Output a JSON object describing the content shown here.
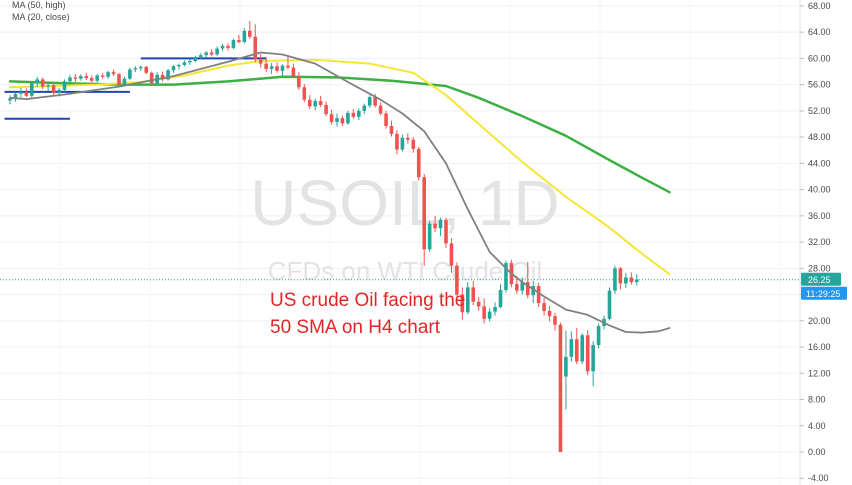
{
  "chart_data": {
    "type": "candlestick",
    "symbol_watermark": "USOIL, 1D",
    "subtitle_watermark": "CFDs on WTI Crude Oil",
    "annotation": [
      "US crude Oil facing the",
      "50 SMA on H4 chart"
    ],
    "legend": [
      {
        "label": "MA (50, high)",
        "color": "#f5e636"
      },
      {
        "label": "MA (20, close)",
        "color": "#808080"
      }
    ],
    "y_axis": {
      "ylim": [
        -2,
        70
      ],
      "ticks": [
        "68.00",
        "64.00",
        "60.00",
        "56.00",
        "52.00",
        "48.00",
        "44.00",
        "40.00",
        "36.00",
        "32.00",
        "28.00",
        "24.00",
        "20.00",
        "16.00",
        "12.00",
        "8.00",
        "4.00",
        "0.00",
        "-4.00"
      ]
    },
    "last_price": {
      "value": 26.25,
      "label": "26.25",
      "color": "#26a69a"
    },
    "countdown": {
      "label": "11:29:25",
      "color": "#2196f3"
    },
    "colors": {
      "up": "#26a69a",
      "down": "#ef5350",
      "ma_fast": "#808080",
      "ma_yellow": "#f5e636",
      "ma_green": "#3cb043",
      "levels": "#1e44b4"
    },
    "candles": [
      [
        53.6,
        54.4,
        53.0,
        53.9
      ],
      [
        53.9,
        54.8,
        53.4,
        54.6
      ],
      [
        54.6,
        55.5,
        54.0,
        54.9
      ],
      [
        54.9,
        55.4,
        54.1,
        54.3
      ],
      [
        54.3,
        56.4,
        54.0,
        56.2
      ],
      [
        56.2,
        57.2,
        55.6,
        56.8
      ],
      [
        56.8,
        57.1,
        55.3,
        55.7
      ],
      [
        55.7,
        56.4,
        55.0,
        55.9
      ],
      [
        55.9,
        56.1,
        54.4,
        54.7
      ],
      [
        54.7,
        55.5,
        54.2,
        55.2
      ],
      [
        55.2,
        56.8,
        54.9,
        56.5
      ],
      [
        56.5,
        57.5,
        56.0,
        57.1
      ],
      [
        57.1,
        57.6,
        56.4,
        56.9
      ],
      [
        56.9,
        57.6,
        56.6,
        57.3
      ],
      [
        57.3,
        57.8,
        56.7,
        57.0
      ],
      [
        57.0,
        57.4,
        56.3,
        56.6
      ],
      [
        56.6,
        57.6,
        56.3,
        57.4
      ],
      [
        57.4,
        57.8,
        56.9,
        57.2
      ],
      [
        57.2,
        58.1,
        56.9,
        57.9
      ],
      [
        57.9,
        58.3,
        57.3,
        57.6
      ],
      [
        57.6,
        57.8,
        55.7,
        56.0
      ],
      [
        56.0,
        57.2,
        55.7,
        56.9
      ],
      [
        56.9,
        58.6,
        56.7,
        58.3
      ],
      [
        58.3,
        58.8,
        57.9,
        58.5
      ],
      [
        58.5,
        58.9,
        58.1,
        58.7
      ],
      [
        58.7,
        58.9,
        57.6,
        57.8
      ],
      [
        57.8,
        58.0,
        55.8,
        56.2
      ],
      [
        56.2,
        57.9,
        55.9,
        57.5
      ],
      [
        57.5,
        58.0,
        56.5,
        56.8
      ],
      [
        56.8,
        58.4,
        56.6,
        58.2
      ],
      [
        58.2,
        59.0,
        57.8,
        58.8
      ],
      [
        58.8,
        59.2,
        58.3,
        59.0
      ],
      [
        59.0,
        59.7,
        58.8,
        59.4
      ],
      [
        59.4,
        59.9,
        59.0,
        59.6
      ],
      [
        59.6,
        60.4,
        59.4,
        60.2
      ],
      [
        60.2,
        60.8,
        59.8,
        60.5
      ],
      [
        60.5,
        61.1,
        60.1,
        60.9
      ],
      [
        60.9,
        61.4,
        60.3,
        60.6
      ],
      [
        60.6,
        61.8,
        60.4,
        61.5
      ],
      [
        61.5,
        62.2,
        61.1,
        61.9
      ],
      [
        61.9,
        62.3,
        61.2,
        61.6
      ],
      [
        61.6,
        63.0,
        61.4,
        62.8
      ],
      [
        62.8,
        63.6,
        62.3,
        62.5
      ],
      [
        62.5,
        64.6,
        62.3,
        64.2
      ],
      [
        64.2,
        65.7,
        63.0,
        63.3
      ],
      [
        63.3,
        65.2,
        59.4,
        59.8
      ],
      [
        59.8,
        60.7,
        58.6,
        59.2
      ],
      [
        59.2,
        60.2,
        57.9,
        58.4
      ],
      [
        58.4,
        59.3,
        57.6,
        58.8
      ],
      [
        58.8,
        59.4,
        57.8,
        58.1
      ],
      [
        58.1,
        59.1,
        57.4,
        58.9
      ],
      [
        58.9,
        60.3,
        58.3,
        58.6
      ],
      [
        58.6,
        59.2,
        57.0,
        57.3
      ],
      [
        57.3,
        57.9,
        55.2,
        55.6
      ],
      [
        55.6,
        56.1,
        53.3,
        53.7
      ],
      [
        53.7,
        54.4,
        52.3,
        52.7
      ],
      [
        52.7,
        53.9,
        52.1,
        53.5
      ],
      [
        53.5,
        54.3,
        52.6,
        52.9
      ],
      [
        52.9,
        53.4,
        51.2,
        51.5
      ],
      [
        51.5,
        52.2,
        49.9,
        50.3
      ],
      [
        50.3,
        51.6,
        49.6,
        50.9
      ],
      [
        50.9,
        51.3,
        49.7,
        50.1
      ],
      [
        50.1,
        52.0,
        49.9,
        51.7
      ],
      [
        51.7,
        52.3,
        50.8,
        51.1
      ],
      [
        51.1,
        52.4,
        50.6,
        52.0
      ],
      [
        52.0,
        53.1,
        51.5,
        52.8
      ],
      [
        52.8,
        54.4,
        52.5,
        54.1
      ],
      [
        54.1,
        54.6,
        52.5,
        52.8
      ],
      [
        52.8,
        53.3,
        51.3,
        51.6
      ],
      [
        51.6,
        52.0,
        49.3,
        49.7
      ],
      [
        49.7,
        50.5,
        48.1,
        48.5
      ],
      [
        48.5,
        49.1,
        45.4,
        46.1
      ],
      [
        46.1,
        48.4,
        45.8,
        47.9
      ],
      [
        47.9,
        48.6,
        47.0,
        47.6
      ],
      [
        47.6,
        48.0,
        45.6,
        46.2
      ],
      [
        46.2,
        46.5,
        41.4,
        41.9
      ],
      [
        41.9,
        42.4,
        28.4,
        30.9
      ],
      [
        30.9,
        35.2,
        30.5,
        34.8
      ],
      [
        34.8,
        36.0,
        33.5,
        34.1
      ],
      [
        34.1,
        35.7,
        32.9,
        35.4
      ],
      [
        35.4,
        35.7,
        31.1,
        31.8
      ],
      [
        31.8,
        32.6,
        27.3,
        28.4
      ],
      [
        28.4,
        28.9,
        23.3,
        24.0
      ],
      [
        24.0,
        25.1,
        20.2,
        21.3
      ],
      [
        21.3,
        25.9,
        21.0,
        25.1
      ],
      [
        25.1,
        26.1,
        22.4,
        22.9
      ],
      [
        22.9,
        23.6,
        21.5,
        22.2
      ],
      [
        22.2,
        23.4,
        19.6,
        20.3
      ],
      [
        20.3,
        21.9,
        19.9,
        21.4
      ],
      [
        21.4,
        22.8,
        20.8,
        22.1
      ],
      [
        22.1,
        25.6,
        21.9,
        24.7
      ],
      [
        24.7,
        29.1,
        24.3,
        28.8
      ],
      [
        28.8,
        29.3,
        25.1,
        25.6
      ],
      [
        25.6,
        26.8,
        24.1,
        24.6
      ],
      [
        24.6,
        26.6,
        24.0,
        25.9
      ],
      [
        25.9,
        29.0,
        23.4,
        23.9
      ],
      [
        23.9,
        26.1,
        22.7,
        25.3
      ],
      [
        25.3,
        25.8,
        22.1,
        22.7
      ],
      [
        22.7,
        23.5,
        20.8,
        21.5
      ],
      [
        21.5,
        22.3,
        19.9,
        20.7
      ],
      [
        20.7,
        21.2,
        18.5,
        19.4
      ],
      [
        19.4,
        19.7,
        0.0,
        0.0
      ],
      [
        11.5,
        18.5,
        6.5,
        14.5
      ],
      [
        14.5,
        18.4,
        13.8,
        17.2
      ],
      [
        17.2,
        18.9,
        13.4,
        13.8
      ],
      [
        13.8,
        18.1,
        13.4,
        17.8
      ],
      [
        17.8,
        18.6,
        11.7,
        12.3
      ],
      [
        12.3,
        16.9,
        10.0,
        16.3
      ],
      [
        16.3,
        19.6,
        15.8,
        19.2
      ],
      [
        19.2,
        20.8,
        18.7,
        20.3
      ],
      [
        20.3,
        25.1,
        20.1,
        24.6
      ],
      [
        24.6,
        28.4,
        24.1,
        28.0
      ],
      [
        28.0,
        28.2,
        24.8,
        25.7
      ],
      [
        25.7,
        27.3,
        25.0,
        26.6
      ],
      [
        26.6,
        27.4,
        25.5,
        25.9
      ],
      [
        25.9,
        27.1,
        25.4,
        26.3
      ]
    ],
    "ma_gray": [
      [
        0,
        54.0
      ],
      [
        3,
        53.8
      ],
      [
        10,
        54.5
      ],
      [
        20,
        55.7
      ],
      [
        30,
        57.3
      ],
      [
        40,
        59.5
      ],
      [
        46,
        60.9
      ],
      [
        50,
        60.6
      ],
      [
        56,
        59.2
      ],
      [
        62,
        56.4
      ],
      [
        68,
        53.7
      ],
      [
        72,
        51.6
      ],
      [
        76,
        48.9
      ],
      [
        80,
        44.0
      ],
      [
        84,
        37.0
      ],
      [
        88,
        30.5
      ],
      [
        92,
        27.2
      ],
      [
        94,
        25.9
      ],
      [
        98,
        23.7
      ],
      [
        102,
        21.7
      ],
      [
        106,
        20.9
      ],
      [
        110,
        19.3
      ],
      [
        113,
        18.3
      ],
      [
        116,
        18.2
      ],
      [
        119,
        18.4
      ],
      [
        121,
        18.9
      ]
    ],
    "ma_yellow": [
      [
        0,
        55.6
      ],
      [
        8,
        55.8
      ],
      [
        16,
        56.0
      ],
      [
        24,
        56.4
      ],
      [
        32,
        57.4
      ],
      [
        40,
        58.9
      ],
      [
        46,
        59.6
      ],
      [
        56,
        59.8
      ],
      [
        66,
        59.2
      ],
      [
        74,
        57.8
      ],
      [
        80,
        54.4
      ],
      [
        86,
        50.0
      ],
      [
        94,
        44.2
      ],
      [
        102,
        38.9
      ],
      [
        110,
        34.2
      ],
      [
        116,
        30.2
      ],
      [
        121,
        27.1
      ]
    ],
    "ma_green": [
      [
        0,
        56.5
      ],
      [
        10,
        56.2
      ],
      [
        20,
        56.0
      ],
      [
        30,
        56.0
      ],
      [
        40,
        56.5
      ],
      [
        50,
        57.2
      ],
      [
        60,
        57.1
      ],
      [
        70,
        56.6
      ],
      [
        80,
        55.8
      ],
      [
        86,
        54.0
      ],
      [
        94,
        51.2
      ],
      [
        102,
        48.2
      ],
      [
        110,
        44.5
      ],
      [
        116,
        41.8
      ],
      [
        121,
        39.6
      ]
    ],
    "levels": [
      {
        "y": 50.8,
        "x0": -1,
        "x1": 11
      },
      {
        "y": 54.9,
        "x0": -1,
        "x1": 22
      },
      {
        "y": 60.0,
        "x0": 24,
        "x1": 47
      }
    ],
    "grid": true
  }
}
